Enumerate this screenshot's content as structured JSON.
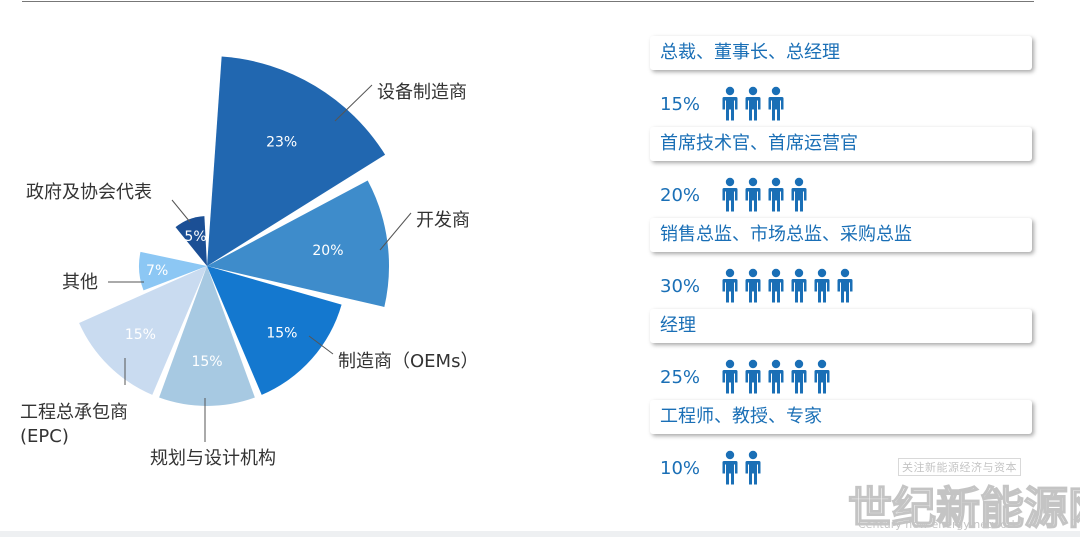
{
  "chart_data": {
    "type": "pie",
    "variant": "polar-area exploded",
    "slices": [
      {
        "label": "设备制造商",
        "value": 23,
        "value_label": "23%",
        "color": "#2167b0"
      },
      {
        "label": "开发商",
        "value": 20,
        "value_label": "20%",
        "color": "#3e8ccb"
      },
      {
        "label": "制造商（OEMs）",
        "value": 15,
        "value_label": "15%",
        "color": "#1478cf"
      },
      {
        "label": "规划与设计机构",
        "value": 15,
        "value_label": "15%",
        "color": "#a7c9e2"
      },
      {
        "label": "工程总承包商\n(EPC)",
        "value": 15,
        "value_label": "15%",
        "color": "#c9dbf0"
      },
      {
        "label": "其他",
        "value": 7,
        "value_label": "7%",
        "color": "#8cc7f4"
      },
      {
        "label": "政府及协会代表",
        "value": 5,
        "value_label": "5%",
        "color": "#1b4f95"
      }
    ]
  },
  "roles": [
    {
      "title": "总裁、董事长、总经理",
      "percent": "15%",
      "icon_count": 3
    },
    {
      "title": "首席技术官、首席运营官",
      "percent": "20%",
      "icon_count": 4
    },
    {
      "title": "销售总监、市场总监、采购总监",
      "percent": "30%",
      "icon_count": 6
    },
    {
      "title": "经理",
      "percent": "25%",
      "icon_count": 5
    },
    {
      "title": "工程师、教授、专家",
      "percent": "10%",
      "icon_count": 2
    }
  ],
  "colors": {
    "accent": "#1a6fb6",
    "person_icon": "#1a6fb6"
  },
  "watermark": {
    "top": "关注新能源经济与资本",
    "main": "世纪新能源网",
    "english": "Century new energy network"
  }
}
